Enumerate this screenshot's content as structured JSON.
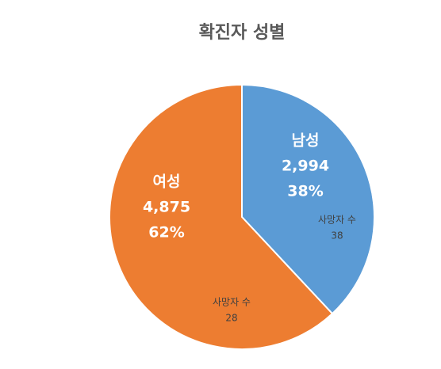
{
  "chart_data": {
    "type": "pie",
    "title": "확진자 성별",
    "categories": [
      "남성",
      "여성"
    ],
    "values": [
      2994,
      4875
    ],
    "value_labels": [
      "2,994",
      "4,875"
    ],
    "percentages": [
      38,
      62
    ],
    "percentage_labels": [
      "38%",
      "62%"
    ],
    "colors": [
      "#5b9bd5",
      "#ed7d31"
    ],
    "annotations": [
      {
        "label": "사망자 수",
        "value": 38
      },
      {
        "label": "사망자 수",
        "value": 28
      }
    ]
  }
}
